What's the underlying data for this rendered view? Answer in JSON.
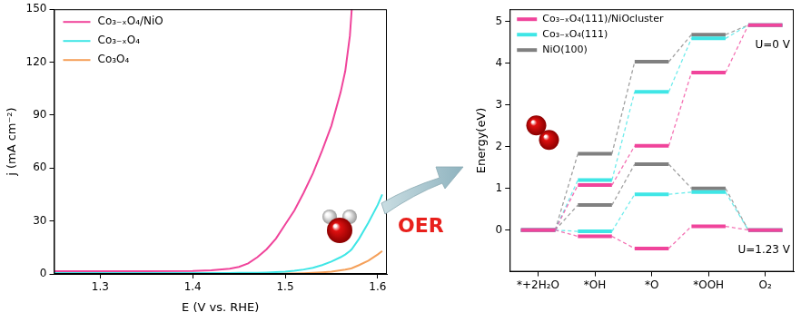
{
  "chart_data": [
    {
      "type": "line",
      "xlabel": "E (V vs. RHE)",
      "ylabel": "j (mA cm⁻²)",
      "x": [
        1.25,
        1.3,
        1.35,
        1.4,
        1.42,
        1.44,
        1.45,
        1.46,
        1.47,
        1.48,
        1.49,
        1.5,
        1.51,
        1.52,
        1.53,
        1.54,
        1.55,
        1.56,
        1.565,
        1.57,
        1.572,
        1.58,
        1.59,
        1.6,
        1.605
      ],
      "series": [
        {
          "name": "Co₃₋ₓO₄/NiO",
          "color": "#f0449b",
          "values": [
            1.5,
            1.6,
            1.6,
            1.7,
            2.0,
            3.0,
            4,
            6,
            9.5,
            14,
            20,
            28,
            36,
            46,
            57,
            70,
            84,
            103,
            115,
            135,
            150,
            null,
            null,
            null,
            null
          ]
        },
        {
          "name": "Co₃₋ₓO₄",
          "color": "#3fe6e6",
          "values": [
            0.5,
            0.5,
            0.5,
            0.5,
            0.5,
            0.5,
            0.6,
            0.6,
            0.7,
            0.8,
            1,
            1.3,
            1.8,
            2.5,
            3.5,
            5,
            7,
            9.5,
            11,
            13,
            14,
            20,
            29,
            39,
            45
          ]
        },
        {
          "name": "Co₃O₄",
          "color": "#f5a05a",
          "values": [
            0,
            0,
            0,
            0,
            0,
            0,
            0,
            0,
            0,
            0,
            0.1,
            0.2,
            0.3,
            0.4,
            0.6,
            0.9,
            1.3,
            2,
            2.4,
            3,
            3.2,
            5,
            7.5,
            11,
            13
          ]
        }
      ],
      "xlim": [
        1.25,
        1.61
      ],
      "xticks": [
        1.3,
        1.4,
        1.5,
        1.6
      ],
      "ylim": [
        0,
        150
      ],
      "yticks": [
        0,
        30,
        60,
        90,
        120,
        150
      ],
      "grid": false,
      "legend": "upper left",
      "annotations": [
        "OER"
      ]
    },
    {
      "type": "step",
      "ylabel": "Energy(eV)",
      "categories": [
        "*+2H₂O",
        "*OH",
        "*O",
        "*OOH",
        "O₂"
      ],
      "groups": [
        {
          "label": "U=0 V",
          "series": [
            {
              "name": "Co₃₋ₓO₄(111)/NiOcluster",
              "color": "#f0449b",
              "values": [
                0,
                1.08,
                2.02,
                3.78,
                4.92
              ]
            },
            {
              "name": "Co₃₋ₓO₄(111)",
              "color": "#3fe6e6",
              "values": [
                0,
                1.2,
                3.32,
                4.6,
                4.92
              ]
            },
            {
              "name": "NiO(100)",
              "color": "#808080",
              "values": [
                0,
                1.83,
                4.04,
                4.69,
                4.92
              ]
            }
          ]
        },
        {
          "label": "U=1.23 V",
          "series": [
            {
              "name": "Co₃₋ₓO₄(111)/NiOcluster",
              "color": "#f0449b",
              "values": [
                0,
                -0.15,
                -0.44,
                0.09,
                0
              ]
            },
            {
              "name": "Co₃₋ₓO₄(111)",
              "color": "#3fe6e6",
              "values": [
                0,
                -0.03,
                0.86,
                0.91,
                0
              ]
            },
            {
              "name": "NiO(100)",
              "color": "#808080",
              "values": [
                0,
                0.6,
                1.58,
                1.0,
                0
              ]
            }
          ]
        }
      ],
      "ylim": [
        -1,
        5.3
      ],
      "yticks": [
        0,
        1,
        2,
        3,
        4,
        5
      ],
      "grid": false,
      "legend": "upper left"
    }
  ]
}
